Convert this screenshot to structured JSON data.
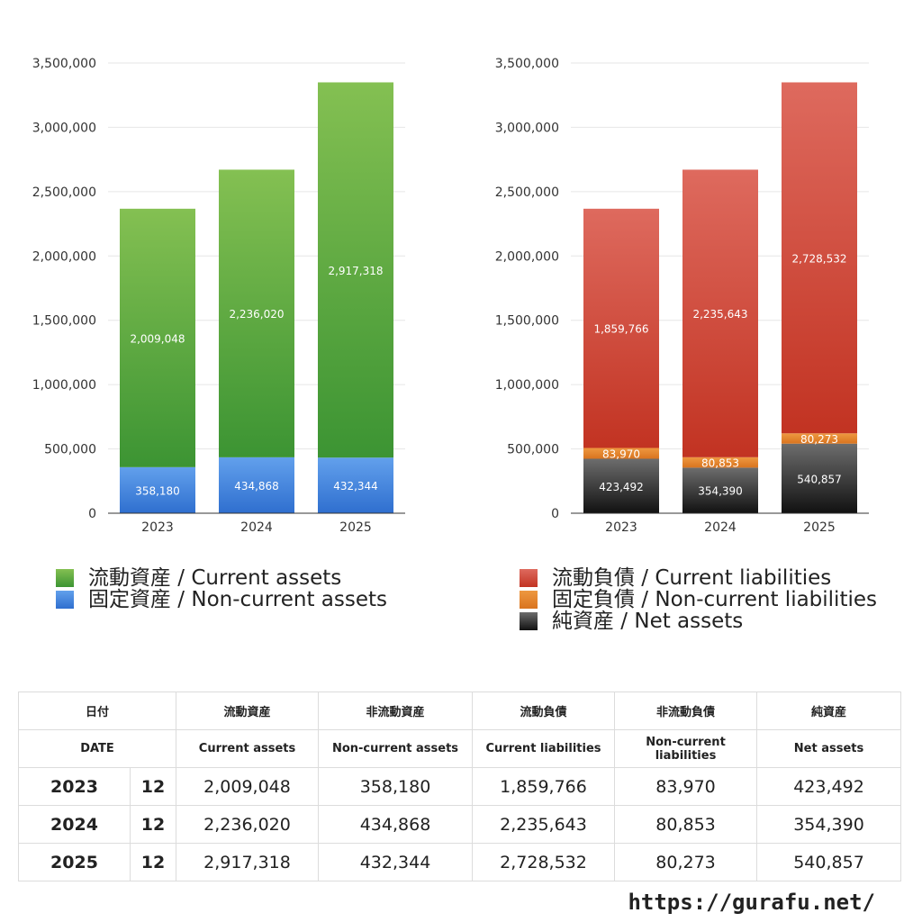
{
  "chart_data": [
    {
      "type": "bar",
      "stacked": true,
      "categories": [
        "2023",
        "2024",
        "2025"
      ],
      "yticks": [
        "0",
        "500,000",
        "1,000,000",
        "1,500,000",
        "2,000,000",
        "2,500,000",
        "3,000,000",
        "3,500,000"
      ],
      "ylim": [
        0,
        3500000
      ],
      "series": [
        {
          "name": "固定資産 / Non-current assets",
          "values": [
            358180,
            434868,
            432344
          ],
          "labels": [
            "358,180",
            "434,868",
            "432,344"
          ],
          "color_top": "#62a0ec",
          "color_bottom": "#2f6fcf"
        },
        {
          "name": "流動資産 / Current assets",
          "values": [
            2009048,
            2236020,
            2917318
          ],
          "labels": [
            "2,009,048",
            "2,236,020",
            "2,917,318"
          ],
          "color_top": "#84c052",
          "color_bottom": "#3c9433"
        }
      ],
      "legend_order": [
        1,
        0
      ]
    },
    {
      "type": "bar",
      "stacked": true,
      "categories": [
        "2023",
        "2024",
        "2025"
      ],
      "yticks": [
        "0",
        "500,000",
        "1,000,000",
        "1,500,000",
        "2,000,000",
        "2,500,000",
        "3,000,000",
        "3,500,000"
      ],
      "ylim": [
        0,
        3500000
      ],
      "series": [
        {
          "name": "純資産 / Net assets",
          "values": [
            423492,
            354390,
            540857
          ],
          "labels": [
            "423,492",
            "354,390",
            "540,857"
          ],
          "color_top": "#6d6d6d",
          "color_bottom": "#111111"
        },
        {
          "name": "固定負債 / Non-current liabilities",
          "values": [
            83970,
            80853,
            80273
          ],
          "labels": [
            "83,970",
            "80,853",
            "80,273"
          ],
          "color_top": "#ee9840",
          "color_bottom": "#d9741f"
        },
        {
          "name": "流動負債 / Current liabilities",
          "values": [
            1859766,
            2235643,
            2728532
          ],
          "labels": [
            "1,859,766",
            "2,235,643",
            "2,728,532"
          ],
          "color_top": "#de6a5e",
          "color_bottom": "#c23322"
        }
      ],
      "legend_order": [
        2,
        1,
        0
      ]
    }
  ],
  "table": {
    "header_jp": [
      "日付",
      "流動資産",
      "非流動資産",
      "流動負債",
      "非流動負債",
      "純資産"
    ],
    "header_en": [
      "DATE",
      "Current assets",
      "Non-current assets",
      "Current liabilities",
      "Non-current liabilities",
      "Net assets"
    ],
    "rows": [
      {
        "year": "2023",
        "month": "12",
        "cells": [
          "2,009,048",
          "358,180",
          "1,859,766",
          "83,970",
          "423,492"
        ]
      },
      {
        "year": "2024",
        "month": "12",
        "cells": [
          "2,236,020",
          "434,868",
          "2,235,643",
          "80,853",
          "354,390"
        ]
      },
      {
        "year": "2025",
        "month": "12",
        "cells": [
          "2,917,318",
          "432,344",
          "2,728,532",
          "80,273",
          "540,857"
        ]
      }
    ]
  },
  "footer": {
    "url": "https://gurafu.net/"
  }
}
